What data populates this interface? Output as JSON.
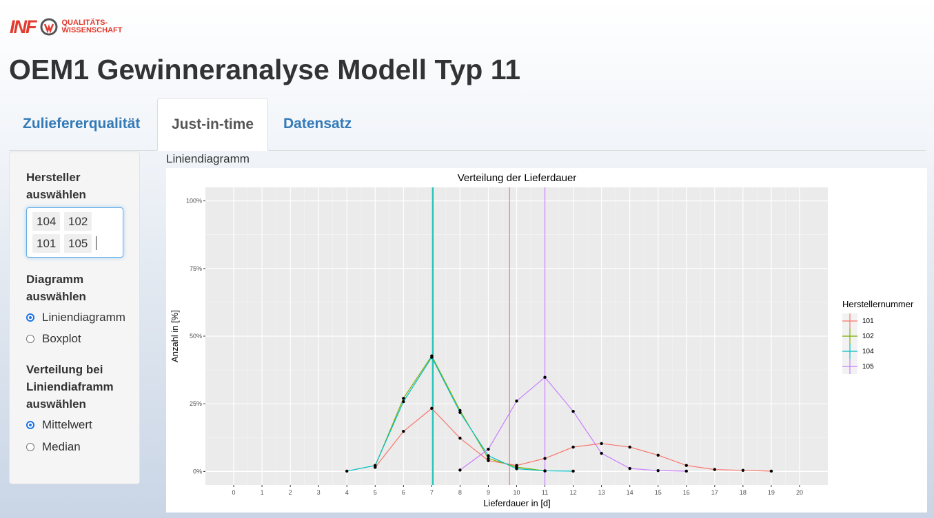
{
  "logo": {
    "brand": "INF",
    "line1": "QUALITÄTS-",
    "line2": "WISSENSCHAFT"
  },
  "title": "OEM1 Gewinneranalyse Modell Typ 11",
  "tabs": [
    {
      "label": "Zuliefererqualität",
      "active": false
    },
    {
      "label": "Just-in-time",
      "active": true
    },
    {
      "label": "Datensatz",
      "active": false
    }
  ],
  "sidebar": {
    "hersteller_label": [
      "Hersteller",
      "auswählen"
    ],
    "selected": [
      "104",
      "102",
      "101",
      "105"
    ],
    "diagramm_label": [
      "Diagramm",
      "auswählen"
    ],
    "diagramm_options": [
      {
        "label": "Liniendiagramm",
        "checked": true
      },
      {
        "label": "Boxplot",
        "checked": false
      }
    ],
    "verteilung_label": [
      "Verteilung bei",
      "Liniendiaframm",
      "auswählen"
    ],
    "verteilung_options": [
      {
        "label": "Mittelwert",
        "checked": true
      },
      {
        "label": "Median",
        "checked": false
      }
    ]
  },
  "plot_label": "Liniendiagramm",
  "chart_data": {
    "type": "line",
    "title": "Verteilung der Lieferdauer",
    "xlabel": "Lieferdauer in [d]",
    "ylabel": "Anzahl in [%]",
    "xlim": [
      -1,
      21
    ],
    "ylim": [
      -5,
      105
    ],
    "x_ticks": [
      0,
      1,
      2,
      3,
      4,
      5,
      6,
      7,
      8,
      9,
      10,
      11,
      12,
      13,
      14,
      15,
      16,
      17,
      18,
      19,
      20
    ],
    "y_ticks": [
      0,
      25,
      50,
      75,
      100
    ],
    "y_tick_labels": [
      "0%",
      "25%",
      "50%",
      "75%",
      "100%"
    ],
    "grid": true,
    "legend_title": "Herstellernummer",
    "legend_position": "right",
    "series": [
      {
        "name": "101",
        "color": "#F8766D",
        "mean": 9.75,
        "x": [
          5,
          6,
          7,
          8,
          9,
          10,
          11,
          12,
          13,
          14,
          15,
          16,
          17,
          18,
          19
        ],
        "y": [
          1.5,
          14.8,
          23.3,
          12.3,
          4.0,
          2.2,
          4.8,
          9.0,
          10.3,
          9.0,
          6.0,
          2.2,
          0.7,
          0.4,
          0.1
        ]
      },
      {
        "name": "102",
        "color": "#7CAE00",
        "mean": 7.05,
        "x": [
          5,
          6,
          7,
          8,
          9,
          10,
          11
        ],
        "y": [
          2.0,
          27.0,
          42.7,
          22.5,
          4.8,
          1.6,
          0.2
        ]
      },
      {
        "name": "104",
        "color": "#00BFC4",
        "mean": 7.02,
        "x": [
          4,
          5,
          6,
          7,
          8,
          9,
          10,
          11,
          12
        ],
        "y": [
          0.1,
          2.2,
          25.8,
          42.2,
          21.8,
          5.8,
          1.0,
          0.2,
          0.1
        ]
      },
      {
        "name": "105",
        "color": "#C77CFF",
        "mean": 11.0,
        "x": [
          8,
          9,
          10,
          11,
          12,
          13,
          14,
          15,
          16
        ],
        "y": [
          0.5,
          8.2,
          26.0,
          34.8,
          22.2,
          6.7,
          1.1,
          0.3,
          0.1
        ]
      }
    ]
  }
}
